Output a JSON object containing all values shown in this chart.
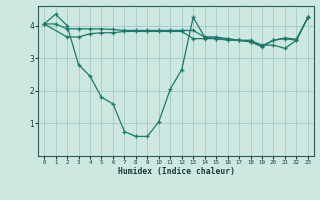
{
  "xlabel": "Humidex (Indice chaleur)",
  "background_color": "#cce8e0",
  "grid_color": "#aacccc",
  "line_color": "#1a7a6a",
  "xlim": [
    -0.5,
    23.5
  ],
  "ylim": [
    0,
    4.6
  ],
  "yticks": [
    1,
    2,
    3,
    4
  ],
  "xticks": [
    0,
    1,
    2,
    3,
    4,
    5,
    6,
    7,
    8,
    9,
    10,
    11,
    12,
    13,
    14,
    15,
    16,
    17,
    18,
    19,
    20,
    21,
    22,
    23
  ],
  "series": [
    {
      "x": [
        0,
        1,
        2,
        3,
        4,
        5,
        6,
        7,
        8,
        9,
        10,
        11,
        12,
        13,
        14,
        15,
        16,
        17,
        18,
        19,
        20,
        21,
        22,
        23
      ],
      "y": [
        4.05,
        4.35,
        4.0,
        2.8,
        2.45,
        1.8,
        1.6,
        0.75,
        0.6,
        0.6,
        1.05,
        2.05,
        2.65,
        4.25,
        3.65,
        3.65,
        3.6,
        3.55,
        3.55,
        3.4,
        3.4,
        3.3,
        3.55,
        4.25
      ]
    },
    {
      "x": [
        0,
        1,
        2,
        3,
        4,
        5,
        6,
        7,
        8,
        9,
        10,
        11,
        12,
        13,
        14,
        15,
        16,
        17,
        18,
        19,
        20,
        21,
        22,
        23
      ],
      "y": [
        4.05,
        4.05,
        3.9,
        3.9,
        3.9,
        3.9,
        3.88,
        3.85,
        3.85,
        3.85,
        3.85,
        3.85,
        3.85,
        3.85,
        3.65,
        3.6,
        3.55,
        3.55,
        3.5,
        3.35,
        3.55,
        3.6,
        3.55,
        4.25
      ]
    },
    {
      "x": [
        0,
        2,
        3,
        4,
        5,
        6,
        7,
        8,
        9,
        10,
        11,
        12,
        13,
        14,
        15,
        16,
        17,
        18,
        19,
        20,
        21,
        22,
        23
      ],
      "y": [
        4.05,
        3.65,
        3.65,
        3.75,
        3.78,
        3.78,
        3.82,
        3.82,
        3.82,
        3.82,
        3.82,
        3.82,
        3.6,
        3.6,
        3.6,
        3.58,
        3.55,
        3.5,
        3.38,
        3.55,
        3.62,
        3.58,
        4.25
      ]
    }
  ]
}
